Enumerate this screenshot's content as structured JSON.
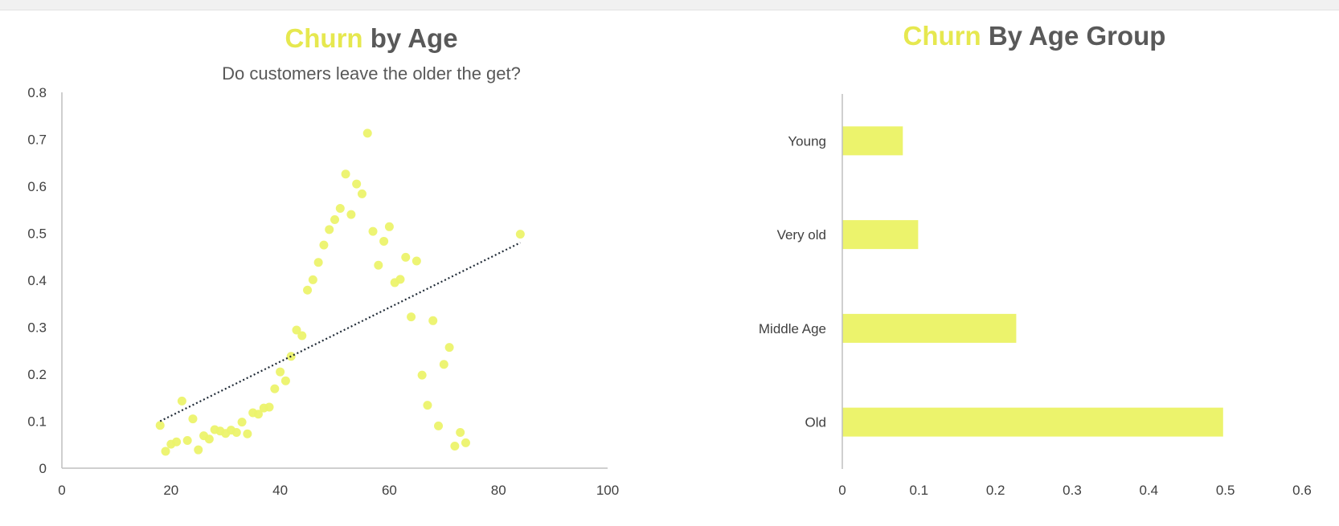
{
  "colors": {
    "accent": "#e6e84f",
    "accent_fill": "#ecf36c",
    "title_dark": "#595959",
    "axis": "#bfbfbf",
    "trendline": "#1f2a36"
  },
  "chart_data": [
    {
      "type": "scatter",
      "title_accent": "Churn",
      "title_rest": " by Age",
      "subtitle": "Do customers leave the older the get?",
      "xlabel": "",
      "ylabel": "",
      "xlim": [
        0,
        100
      ],
      "ylim": [
        0,
        0.8
      ],
      "x_ticks": [
        "0",
        "20",
        "40",
        "60",
        "80",
        "100"
      ],
      "y_ticks": [
        "0",
        "0.1",
        "0.2",
        "0.3",
        "0.4",
        "0.5",
        "0.6",
        "0.7",
        "0.8"
      ],
      "trendline": {
        "type": "linear",
        "style": "dotted",
        "from": [
          18,
          0.1
        ],
        "to": [
          84,
          0.48
        ]
      },
      "points": [
        [
          18,
          0.091
        ],
        [
          19,
          0.036
        ],
        [
          20,
          0.051
        ],
        [
          21,
          0.056
        ],
        [
          22,
          0.143
        ],
        [
          23,
          0.059
        ],
        [
          24,
          0.105
        ],
        [
          25,
          0.039
        ],
        [
          26,
          0.069
        ],
        [
          27,
          0.062
        ],
        [
          28,
          0.082
        ],
        [
          29,
          0.079
        ],
        [
          30,
          0.074
        ],
        [
          31,
          0.081
        ],
        [
          32,
          0.076
        ],
        [
          33,
          0.098
        ],
        [
          34,
          0.073
        ],
        [
          35,
          0.118
        ],
        [
          36,
          0.115
        ],
        [
          37,
          0.128
        ],
        [
          38,
          0.13
        ],
        [
          39,
          0.169
        ],
        [
          40,
          0.205
        ],
        [
          41,
          0.186
        ],
        [
          42,
          0.238
        ],
        [
          43,
          0.294
        ],
        [
          44,
          0.282
        ],
        [
          45,
          0.379
        ],
        [
          46,
          0.401
        ],
        [
          47,
          0.438
        ],
        [
          48,
          0.475
        ],
        [
          49,
          0.508
        ],
        [
          50,
          0.529
        ],
        [
          51,
          0.553
        ],
        [
          52,
          0.626
        ],
        [
          53,
          0.54
        ],
        [
          54,
          0.605
        ],
        [
          55,
          0.584
        ],
        [
          56,
          0.713
        ],
        [
          57,
          0.504
        ],
        [
          58,
          0.432
        ],
        [
          59,
          0.483
        ],
        [
          60,
          0.514
        ],
        [
          61,
          0.395
        ],
        [
          62,
          0.402
        ],
        [
          63,
          0.449
        ],
        [
          64,
          0.322
        ],
        [
          65,
          0.441
        ],
        [
          66,
          0.198
        ],
        [
          67,
          0.134
        ],
        [
          68,
          0.314
        ],
        [
          69,
          0.09
        ],
        [
          70,
          0.221
        ],
        [
          71,
          0.257
        ],
        [
          72,
          0.047
        ],
        [
          73,
          0.076
        ],
        [
          74,
          0.054
        ],
        [
          84,
          0.498
        ]
      ]
    },
    {
      "type": "bar",
      "orientation": "horizontal",
      "title_accent": "Churn",
      "title_rest": " By Age Group",
      "xlabel": "",
      "ylabel": "",
      "xlim": [
        0,
        0.6
      ],
      "x_ticks": [
        "0",
        "0.1",
        "0.2",
        "0.3",
        "0.4",
        "0.5",
        "0.6"
      ],
      "categories": [
        "Young",
        "Very old",
        "Middle Age",
        "Old"
      ],
      "values": [
        0.079,
        0.099,
        0.227,
        0.497
      ]
    }
  ]
}
